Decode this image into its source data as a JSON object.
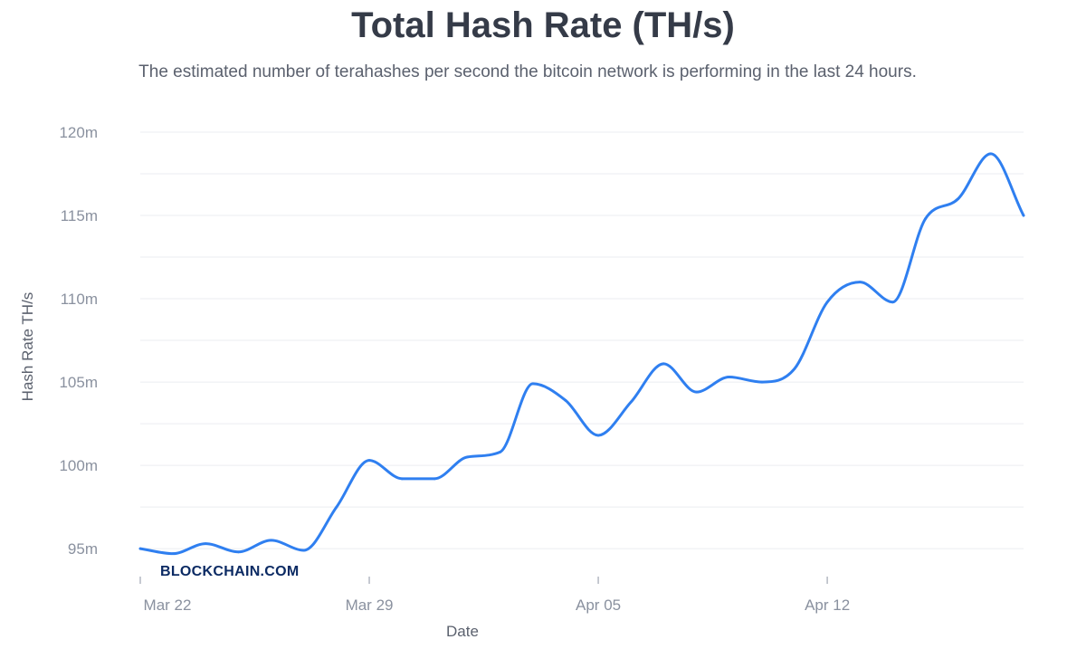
{
  "header": {
    "title": "Total Hash Rate (TH/s)",
    "subtitle": "The estimated number of terahashes per second the bitcoin network is performing in the last 24 hours."
  },
  "watermark": "BLOCKCHAIN.COM",
  "colors": {
    "line": "#2f7ff0",
    "grid": "#ebedf0",
    "tick": "#8a919f"
  },
  "chart_data": {
    "type": "line",
    "title": "Total Hash Rate (TH/s)",
    "xlabel": "Date",
    "ylabel": "Hash Rate TH/s",
    "x_tick_labels": [
      "Mar 22",
      "Mar 29",
      "Apr 05",
      "Apr 12"
    ],
    "x_tick_values": [
      "2021-03-22",
      "2021-03-29",
      "2021-04-05",
      "2021-04-12"
    ],
    "y_tick_labels": [
      "95m",
      "100m",
      "105m",
      "110m",
      "115m",
      "120m"
    ],
    "y_tick_values": [
      95000000,
      100000000,
      105000000,
      110000000,
      115000000,
      120000000
    ],
    "ylim": [
      94300000,
      120000000
    ],
    "xlim": [
      "2021-03-22",
      "2021-04-18"
    ],
    "grid": true,
    "legend": "none",
    "series": [
      {
        "x": [
          "2021-03-22",
          "2021-03-23",
          "2021-03-24",
          "2021-03-25",
          "2021-03-26",
          "2021-03-27",
          "2021-03-28",
          "2021-03-29",
          "2021-03-30",
          "2021-03-31",
          "2021-04-01",
          "2021-04-02",
          "2021-04-03",
          "2021-04-04",
          "2021-04-05",
          "2021-04-06",
          "2021-04-07",
          "2021-04-08",
          "2021-04-09",
          "2021-04-10",
          "2021-04-11",
          "2021-04-12",
          "2021-04-13",
          "2021-04-14",
          "2021-04-15",
          "2021-04-16",
          "2021-04-17",
          "2021-04-18"
        ],
        "values": [
          95000000,
          94700000,
          95300000,
          94800000,
          95500000,
          94900000,
          97500000,
          100300000,
          99200000,
          99200000,
          100500000,
          100800000,
          104900000,
          103900000,
          101800000,
          103800000,
          106100000,
          104400000,
          105300000,
          105000000,
          105800000,
          109800000,
          111000000,
          109800000,
          114800000,
          116000000,
          118700000,
          115000000
        ]
      }
    ]
  }
}
